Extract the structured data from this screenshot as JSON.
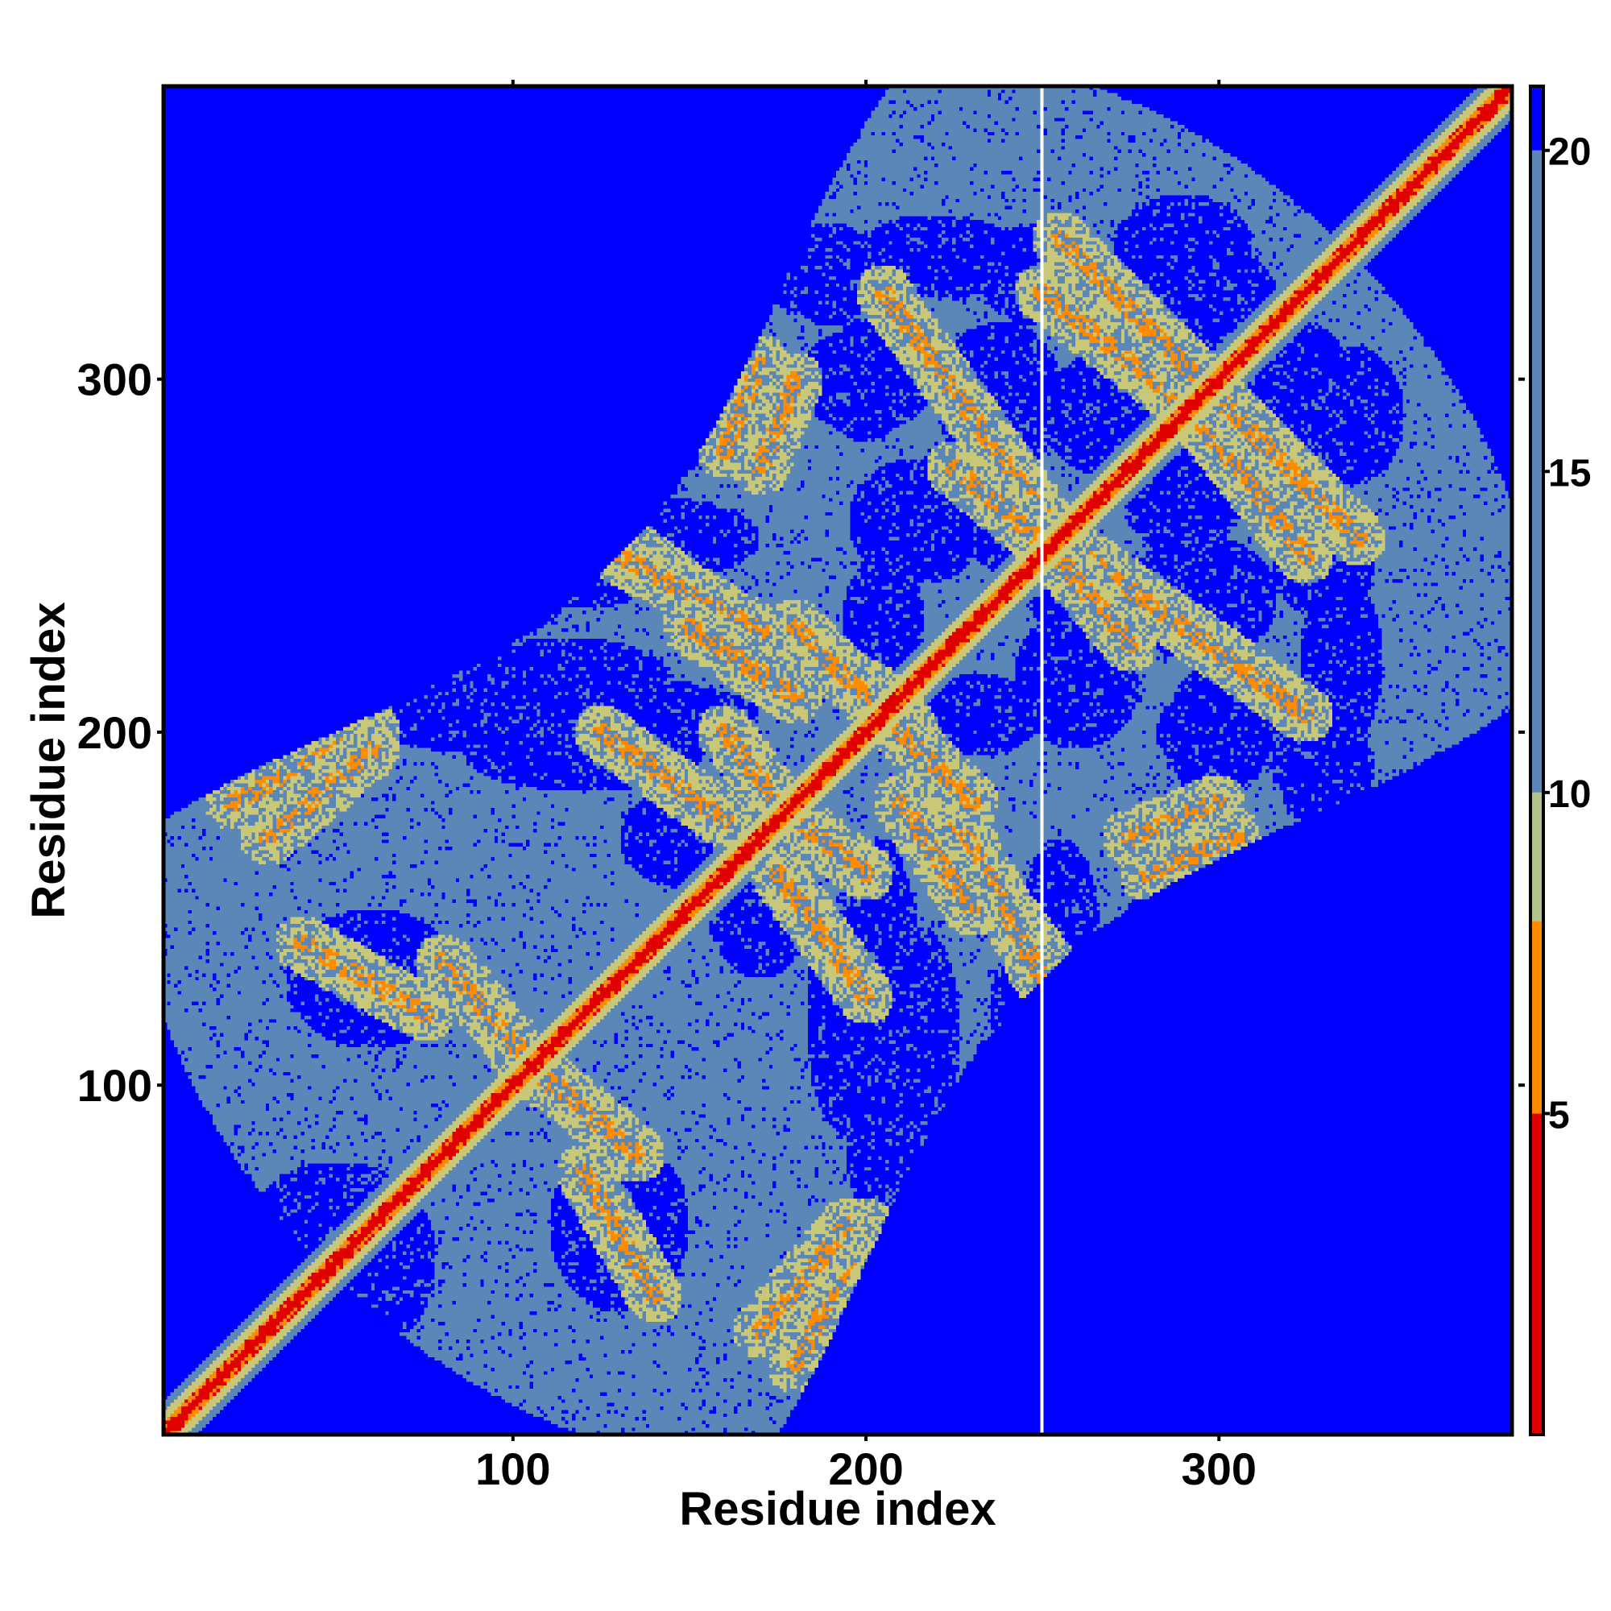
{
  "chart_data": {
    "type": "heatmap",
    "title": "",
    "xlabel": "Residue index",
    "ylabel": "Residue index",
    "n_residues": 383,
    "xlim": [
      1,
      383
    ],
    "ylim": [
      1,
      383
    ],
    "x_ticks": [
      100,
      200,
      300
    ],
    "y_ticks": [
      100,
      200,
      300
    ],
    "x_tick_labels": [
      "100",
      "200",
      "300"
    ],
    "y_tick_labels": [
      "100",
      "200",
      "300"
    ],
    "colorbar": {
      "range": [
        0,
        21
      ],
      "ticks": [
        5,
        10,
        15,
        20
      ],
      "tick_labels": [
        "5",
        "10",
        "15",
        "20"
      ],
      "bands": [
        {
          "from": 0,
          "to": 5,
          "color": "#e00000"
        },
        {
          "from": 5,
          "to": 8,
          "color": "#ff8c00"
        },
        {
          "from": 8,
          "to": 10,
          "color": "#b4c48c"
        },
        {
          "from": 10,
          "to": 20,
          "color": "#5b86b8"
        },
        {
          "from": 20,
          "to": 21,
          "color": "#0000ff"
        }
      ]
    },
    "colors": {
      "far": "#0000ff",
      "mid": "#5b86b8",
      "near": "#c8c878",
      "close": "#ff8c00",
      "diagonal": "#e00000"
    },
    "contact_bands": [
      {
        "kind": "parallel",
        "from": [
          130,
          255
        ],
        "to": [
          170,
          225
        ]
      },
      {
        "kind": "antiparallel",
        "from": [
          20,
          180
        ],
        "to": [
          60,
          200
        ]
      },
      {
        "kind": "antiparallel",
        "from": [
          80,
          135
        ],
        "to": [
          110,
          100
        ]
      },
      {
        "kind": "antiparallel",
        "from": [
          120,
          75
        ],
        "to": [
          140,
          40
        ]
      },
      {
        "kind": "antiparallel",
        "from": [
          170,
          30
        ],
        "to": [
          195,
          60
        ]
      },
      {
        "kind": "antiparallel",
        "from": [
          205,
          325
        ],
        "to": [
          255,
          255
        ]
      },
      {
        "kind": "antiparallel",
        "from": [
          225,
          275
        ],
        "to": [
          255,
          250
        ]
      },
      {
        "kind": "antiparallel",
        "from": [
          255,
          340
        ],
        "to": [
          325,
          250
        ]
      },
      {
        "kind": "antiparallel",
        "from": [
          265,
          330
        ],
        "to": [
          340,
          255
        ]
      },
      {
        "kind": "antiparallel",
        "from": [
          180,
          175
        ],
        "to": [
          200,
          160
        ]
      },
      {
        "kind": "antiparallel",
        "from": [
          210,
          205
        ],
        "to": [
          250,
          130
        ]
      },
      {
        "kind": "parallel",
        "from": [
          175,
          160
        ],
        "to": [
          200,
          125
        ]
      },
      {
        "kind": "antiparallel",
        "from": [
          210,
          180
        ],
        "to": [
          230,
          150
        ]
      },
      {
        "kind": "antiparallel",
        "from": [
          275,
          170
        ],
        "to": [
          300,
          180
        ]
      },
      {
        "kind": "antiparallel",
        "from": [
          160,
          280
        ],
        "to": [
          170,
          305
        ]
      },
      {
        "kind": "antiparallel",
        "from": [
          180,
          230
        ],
        "to": [
          200,
          210
        ]
      }
    ],
    "blue_holes": [
      [
        110,
        205,
        60,
        12
      ],
      [
        90,
        240,
        25,
        15
      ],
      [
        140,
        255,
        30,
        12
      ],
      [
        215,
        260,
        20,
        18
      ],
      [
        200,
        300,
        20,
        15
      ],
      [
        220,
        335,
        25,
        12
      ],
      [
        270,
        290,
        20,
        18
      ],
      [
        290,
        338,
        20,
        15
      ],
      [
        295,
        238,
        22,
        18
      ],
      [
        320,
        300,
        18,
        18
      ],
      [
        330,
        250,
        15,
        18
      ],
      [
        260,
        240,
        15,
        12
      ],
      [
        230,
        205,
        20,
        12
      ],
      [
        195,
        120,
        12,
        35
      ],
      [
        215,
        115,
        12,
        30
      ],
      [
        250,
        120,
        15,
        25
      ],
      [
        290,
        140,
        18,
        20
      ],
      [
        300,
        80,
        15,
        40
      ],
      [
        265,
        40,
        20,
        18
      ],
      [
        240,
        70,
        15,
        20
      ],
      [
        150,
        170,
        20,
        15
      ],
      [
        60,
        130,
        25,
        20
      ],
      [
        50,
        60,
        25,
        18
      ],
      [
        30,
        245,
        20,
        18
      ],
      [
        35,
        290,
        18,
        15
      ],
      [
        130,
        320,
        20,
        15
      ],
      [
        85,
        300,
        25,
        18
      ],
      [
        300,
        200,
        18,
        12
      ],
      [
        330,
        190,
        15,
        12
      ],
      [
        200,
        218,
        12,
        10
      ],
      [
        160,
        290,
        12,
        8
      ],
      [
        185,
        330,
        15,
        12
      ]
    ],
    "gap_line_residue": 250,
    "grid": false,
    "legend": "colorbar-right"
  }
}
